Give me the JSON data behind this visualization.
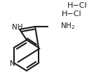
{
  "bg_color": "#ffffff",
  "line_color": "#1a1a1a",
  "line_width": 1.5,
  "text_color": "#1a1a1a",
  "hcl1_text": "H−Cl",
  "hcl2_text": "H−Cl",
  "nh_text": "NH",
  "nh2_text": "NH",
  "n_text": "N",
  "figsize": [
    1.44,
    1.2
  ],
  "dpi": 100
}
